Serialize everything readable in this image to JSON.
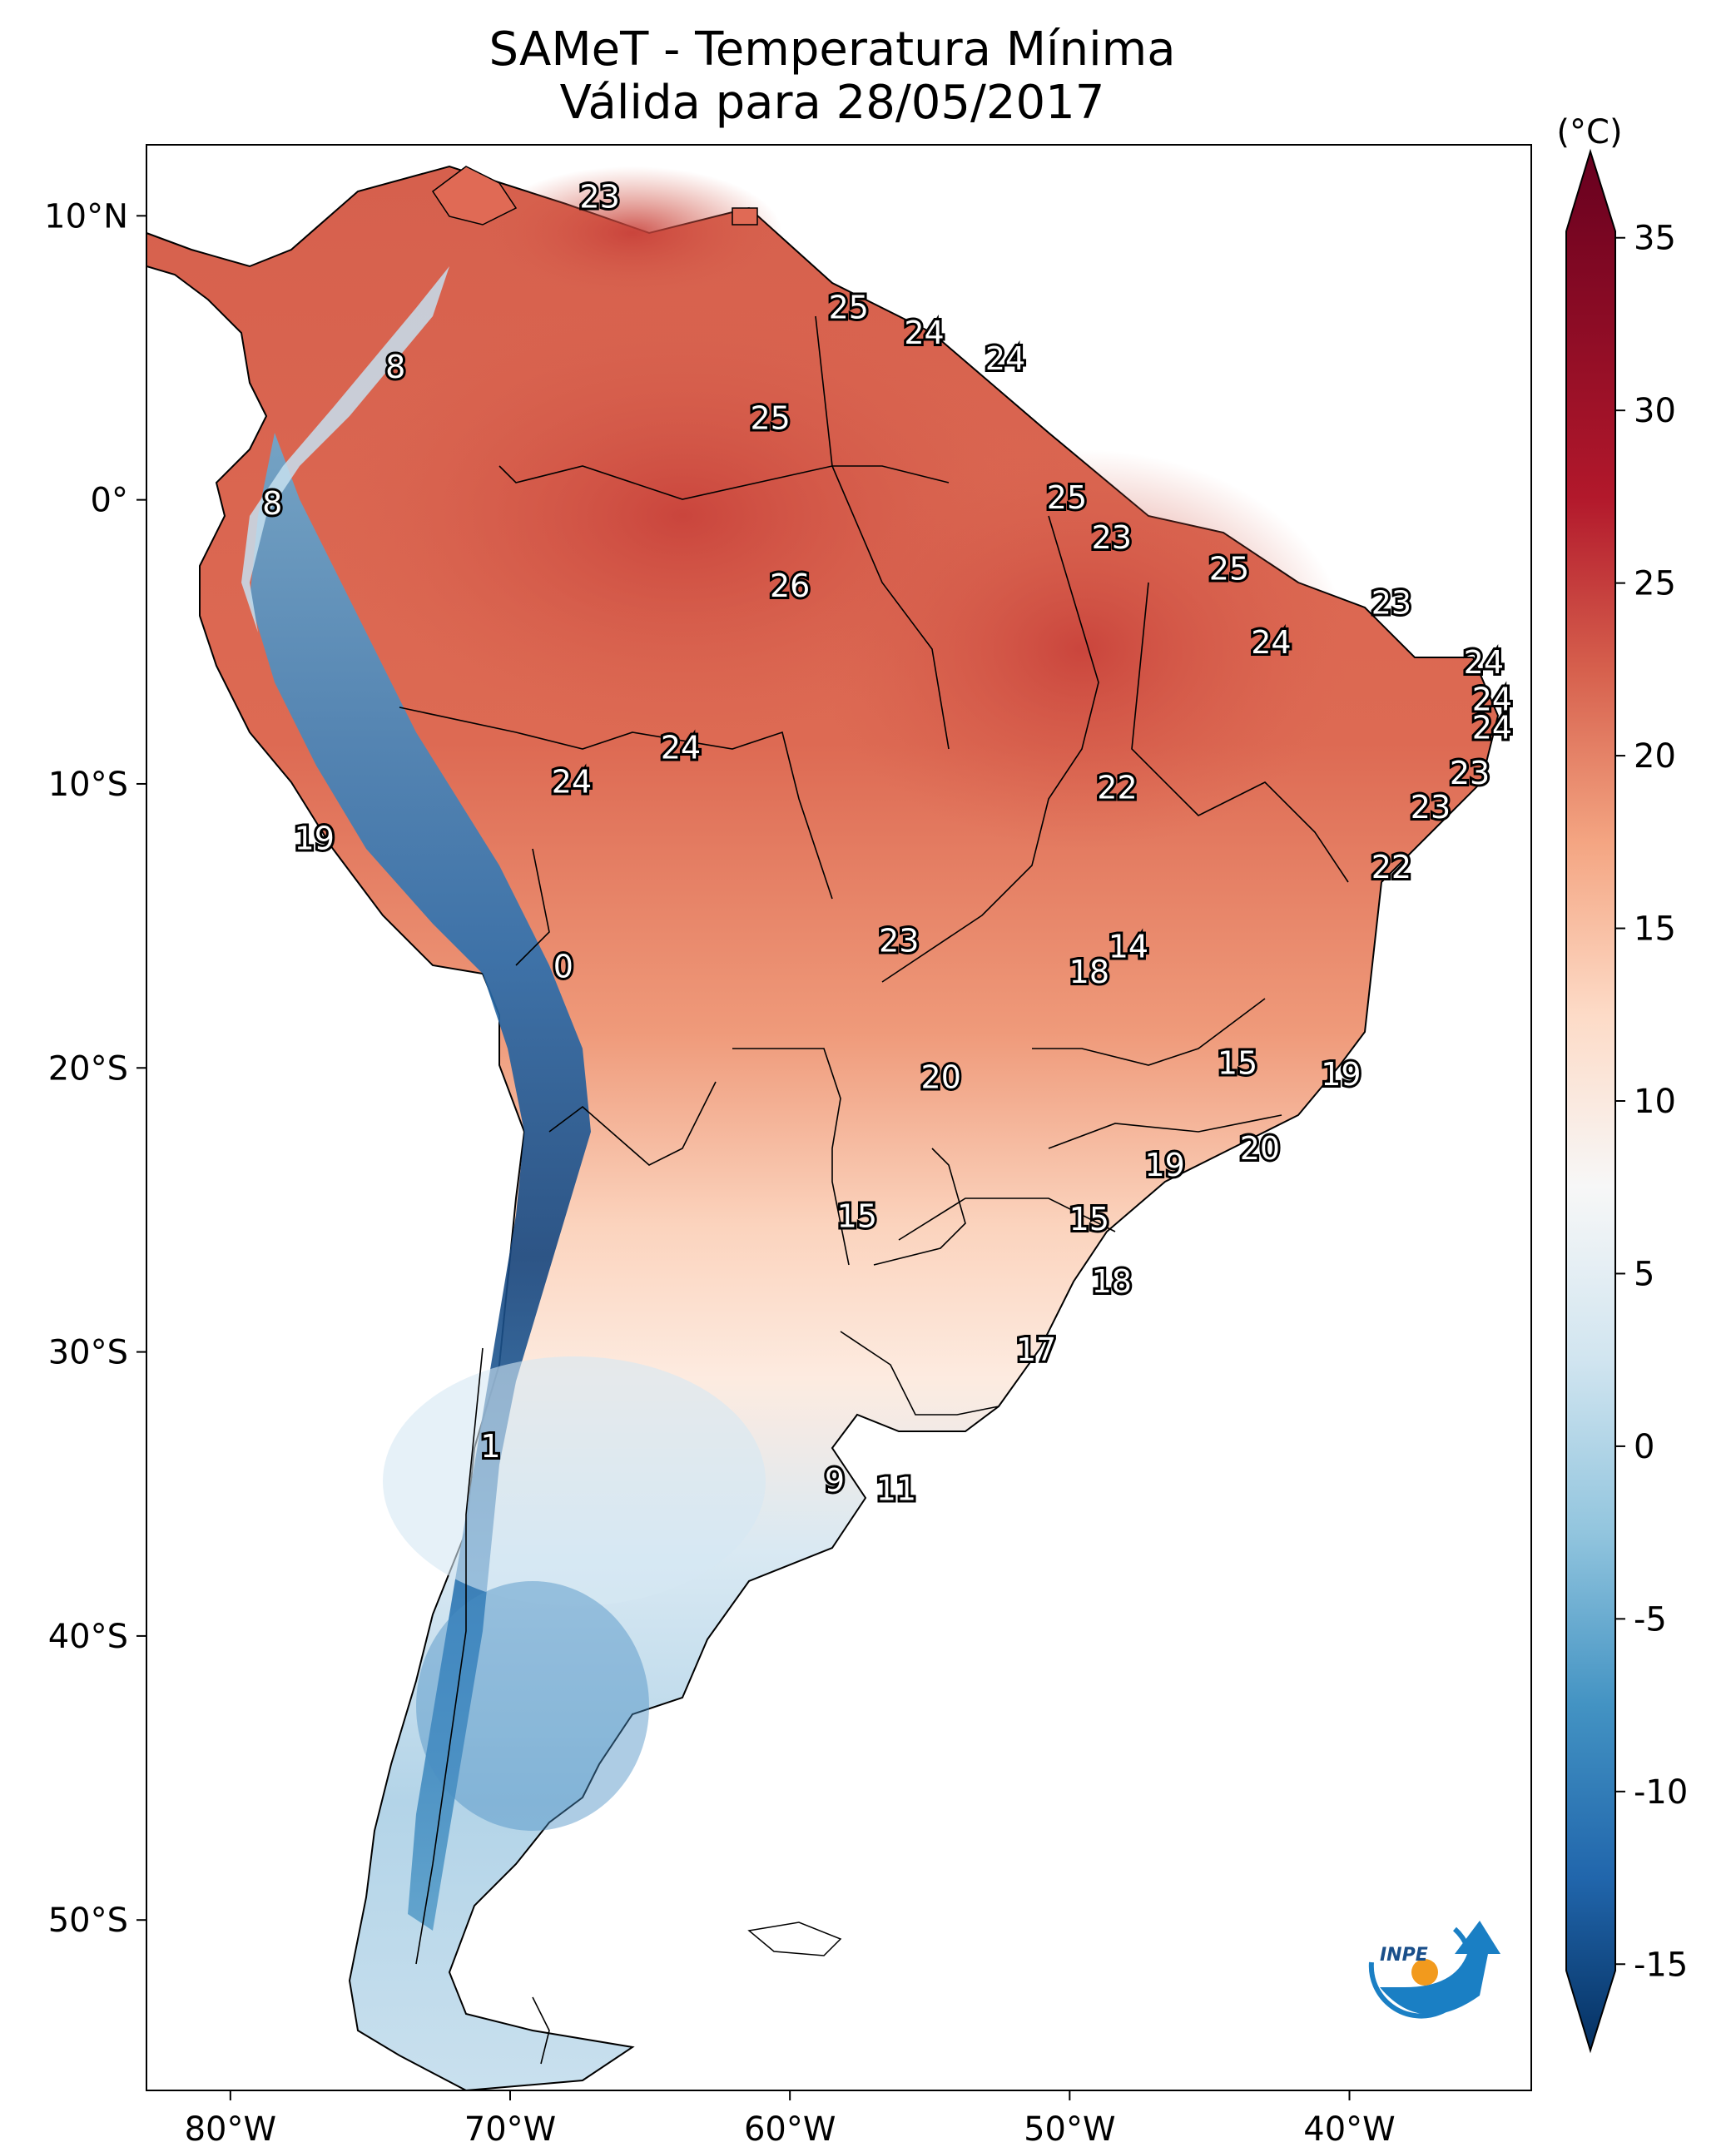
{
  "title": {
    "line1": "SAMeT - Temperatura Mínima",
    "line2": "Válida para 28/05/2017"
  },
  "colorbar": {
    "unit": "(°C)",
    "ticks": [
      "35",
      "30",
      "25",
      "20",
      "15",
      "10",
      "5",
      "0",
      "-5",
      "-10",
      "-15"
    ],
    "tick_values": [
      35,
      30,
      25,
      20,
      15,
      10,
      5,
      0,
      -5,
      -10,
      -15
    ],
    "range": [
      -17.5,
      37.5
    ],
    "colors": [
      "#053061",
      "#2166ac",
      "#4393c3",
      "#92c5de",
      "#d1e5f0",
      "#f7f7f7",
      "#fddbc7",
      "#f4a582",
      "#d6604d",
      "#b2182b",
      "#67001f"
    ]
  },
  "axes": {
    "lon_labels": [
      "80°W",
      "70°W",
      "60°W",
      "50°W",
      "40°W"
    ],
    "lat_labels": [
      "10°N",
      "0°",
      "10°S",
      "20°S",
      "30°S",
      "40°S",
      "50°S"
    ],
    "lon_range": [
      -83,
      -33.5
    ],
    "lat_range": [
      -56,
      12.5
    ]
  },
  "logo": {
    "text": "INPE",
    "icon": "inpe-logo"
  },
  "map_data": {
    "type": "filled-contour",
    "variable": "Temperatura Mínima",
    "stations": [
      {
        "lon": -66.8,
        "lat": 10.6,
        "value": "23"
      },
      {
        "lon": -57.9,
        "lat": 6.7,
        "value": "25"
      },
      {
        "lon": -55.2,
        "lat": 5.8,
        "value": "24"
      },
      {
        "lon": -52.3,
        "lat": 4.9,
        "value": "24"
      },
      {
        "lon": -60.7,
        "lat": 2.8,
        "value": "25"
      },
      {
        "lon": -74.1,
        "lat": 4.6,
        "value": "8"
      },
      {
        "lon": -78.5,
        "lat": -0.2,
        "value": "8"
      },
      {
        "lon": -50.1,
        "lat": -0.0,
        "value": "25"
      },
      {
        "lon": -48.5,
        "lat": -1.4,
        "value": "23"
      },
      {
        "lon": -44.3,
        "lat": -2.5,
        "value": "25"
      },
      {
        "lon": -60.0,
        "lat": -3.1,
        "value": "26"
      },
      {
        "lon": -38.5,
        "lat": -3.7,
        "value": "23"
      },
      {
        "lon": -42.8,
        "lat": -5.1,
        "value": "24"
      },
      {
        "lon": -35.2,
        "lat": -5.8,
        "value": "24"
      },
      {
        "lon": -34.9,
        "lat": -7.1,
        "value": "24"
      },
      {
        "lon": -34.9,
        "lat": -8.1,
        "value": "24"
      },
      {
        "lon": -63.9,
        "lat": -8.8,
        "value": "24"
      },
      {
        "lon": -67.8,
        "lat": -10.0,
        "value": "24"
      },
      {
        "lon": -35.7,
        "lat": -9.7,
        "value": "23"
      },
      {
        "lon": -48.3,
        "lat": -10.2,
        "value": "22"
      },
      {
        "lon": -37.1,
        "lat": -10.9,
        "value": "23"
      },
      {
        "lon": -77.0,
        "lat": -12.0,
        "value": "19"
      },
      {
        "lon": -38.5,
        "lat": -13.0,
        "value": "22"
      },
      {
        "lon": -47.9,
        "lat": -15.8,
        "value": "14"
      },
      {
        "lon": -56.1,
        "lat": -15.6,
        "value": "23"
      },
      {
        "lon": -49.3,
        "lat": -16.7,
        "value": "18"
      },
      {
        "lon": -68.1,
        "lat": -16.5,
        "value": "0"
      },
      {
        "lon": -44.0,
        "lat": -19.9,
        "value": "15"
      },
      {
        "lon": -54.6,
        "lat": -20.4,
        "value": "20"
      },
      {
        "lon": -40.3,
        "lat": -20.3,
        "value": "19"
      },
      {
        "lon": -43.2,
        "lat": -22.9,
        "value": "20"
      },
      {
        "lon": -46.6,
        "lat": -23.5,
        "value": "19"
      },
      {
        "lon": -57.6,
        "lat": -25.3,
        "value": "15"
      },
      {
        "lon": -49.3,
        "lat": -25.4,
        "value": "15"
      },
      {
        "lon": -48.5,
        "lat": -27.6,
        "value": "18"
      },
      {
        "lon": -51.2,
        "lat": -30.0,
        "value": "17"
      },
      {
        "lon": -70.7,
        "lat": -33.4,
        "value": "1"
      },
      {
        "lon": -58.4,
        "lat": -34.6,
        "value": "9"
      },
      {
        "lon": -56.2,
        "lat": -34.9,
        "value": "11"
      }
    ]
  }
}
